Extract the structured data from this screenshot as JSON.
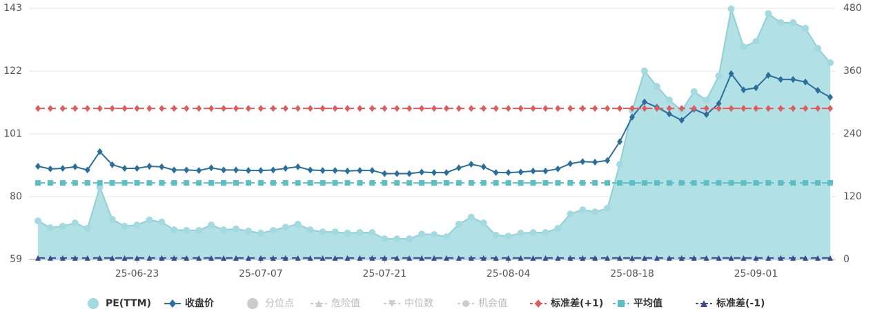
{
  "chart_data": {
    "type": "line",
    "categories": [
      null,
      null,
      null,
      null,
      null,
      null,
      null,
      null,
      "25-06-23",
      null,
      null,
      null,
      null,
      null,
      null,
      null,
      null,
      null,
      "25-07-07",
      null,
      null,
      null,
      null,
      null,
      null,
      null,
      null,
      null,
      "25-07-21",
      null,
      null,
      null,
      null,
      null,
      null,
      null,
      null,
      null,
      "25-08-04",
      null,
      null,
      null,
      null,
      null,
      null,
      null,
      null,
      null,
      "25-08-18",
      null,
      null,
      null,
      null,
      null,
      null,
      null,
      null,
      null,
      "25-09-01",
      null,
      null,
      null,
      null,
      null,
      null
    ],
    "ylim": [
      59,
      143
    ],
    "yticks": [
      59,
      80,
      101,
      122,
      143
    ],
    "y2lim": [
      0,
      480
    ],
    "y2ticks": [
      0,
      120,
      240,
      360,
      480
    ],
    "grid": true,
    "legend": "bottom",
    "series": [
      {
        "name": "PE(TTM)",
        "color": "#a3dae1",
        "marker": "circle",
        "area": true,
        "values": [
          71.9,
          69.6,
          70.1,
          71.2,
          69.4,
          83.2,
          72.4,
          70.1,
          70.5,
          72.2,
          71.5,
          68.9,
          68.7,
          68.7,
          70.5,
          68.9,
          69.2,
          68.5,
          67.8,
          68.7,
          69.8,
          70.8,
          68.9,
          68.2,
          68.2,
          67.8,
          68.0,
          68.0,
          65.9,
          65.9,
          65.9,
          67.5,
          67.3,
          66.6,
          70.8,
          73.1,
          71.2,
          67.1,
          66.8,
          67.8,
          68.0,
          68.0,
          69.4,
          74.2,
          75.6,
          74.9,
          76.1,
          90.8,
          108.8,
          122.0,
          116.9,
          112.3,
          108.8,
          115.1,
          112.3,
          120.4,
          142.8,
          130.1,
          131.9,
          141.2,
          138.2,
          138.2,
          136.3,
          129.6,
          124.8
        ]
      },
      {
        "name": "收盘价",
        "color": "#2a6e9c",
        "marker": "diamond",
        "axis": "y2",
        "values": [
          178,
          173,
          174,
          177,
          171,
          206,
          181,
          174,
          174,
          178,
          177,
          171,
          171,
          170,
          175,
          171,
          171,
          170,
          170,
          171,
          174,
          177,
          171,
          170,
          170,
          169,
          170,
          170,
          164,
          164,
          164,
          167,
          166,
          166,
          175,
          182,
          177,
          166,
          166,
          167,
          169,
          169,
          173,
          183,
          187,
          186,
          189,
          225,
          272,
          301,
          291,
          278,
          266,
          287,
          277,
          298,
          355,
          324,
          328,
          352,
          344,
          344,
          339,
          323,
          310
        ]
      },
      {
        "name": "分位点",
        "color": "#cccccc",
        "marker": "circle",
        "visible": false
      },
      {
        "name": "危险值",
        "color": "#cccccc",
        "marker": "triangle",
        "visible": false
      },
      {
        "name": "中位数",
        "color": "#cccccc",
        "marker": "triangle-down",
        "visible": false
      },
      {
        "name": "机会值",
        "color": "#cccccc",
        "marker": "circle",
        "visible": false
      },
      {
        "name": "标准差(+1)",
        "color": "#e25b5b",
        "marker": "diamond",
        "dashed": true,
        "value": 109.5
      },
      {
        "name": "平均值",
        "color": "#5cbfc3",
        "marker": "square",
        "dashed": true,
        "value": 84.6
      },
      {
        "name": "标准差(-1)",
        "color": "#3e4a8d",
        "marker": "triangle",
        "dashed": true,
        "value": 59.5
      }
    ]
  }
}
